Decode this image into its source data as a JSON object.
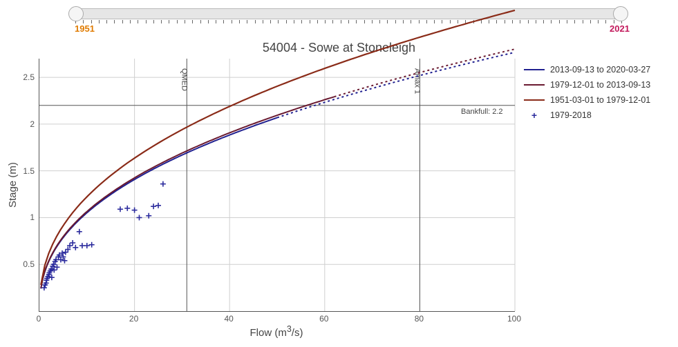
{
  "slider": {
    "min_label": "1951",
    "max_label": "2021",
    "min_color": "#e07b00",
    "max_color": "#c2185b",
    "tick_count": 71
  },
  "chart": {
    "title": "54004 - Sowe at Stoneleigh",
    "xlabel_prefix": "Flow (m",
    "xlabel_sup": "3",
    "xlabel_suffix": "/s)",
    "ylabel": "Stage (m)",
    "xlim": [
      0,
      100
    ],
    "ylim": [
      0,
      2.7
    ],
    "xticks": [
      0,
      20,
      40,
      60,
      80,
      100
    ],
    "yticks": [
      0.5,
      1,
      1.5,
      2,
      2.5
    ],
    "background_color": "#ffffff",
    "grid_color": "#cfcfcf",
    "curves": [
      {
        "name": "2013-09-13 to 2020-03-27",
        "color": "#202090",
        "width": 2,
        "k": 0.4,
        "p": 0.42,
        "solid_to": 50,
        "dash_to": 100
      },
      {
        "name": "1979-12-01 to 2013-09-13",
        "color": "#6a1a30",
        "width": 2,
        "k": 0.405,
        "p": 0.42,
        "solid_to": 62,
        "dash_to": 100
      },
      {
        "name": "1951-03-01 to 1979-12-01",
        "color": "#8a2b18",
        "width": 2.2,
        "k": 0.465,
        "p": 0.42,
        "solid_to": 100,
        "dash_to": 100
      }
    ],
    "points": {
      "name": "1979-2018",
      "color": "#2b2b9d",
      "data": [
        [
          1.0,
          0.25
        ],
        [
          1.2,
          0.28
        ],
        [
          1.4,
          0.3
        ],
        [
          1.5,
          0.33
        ],
        [
          1.6,
          0.35
        ],
        [
          1.8,
          0.37
        ],
        [
          2.0,
          0.39
        ],
        [
          2.1,
          0.41
        ],
        [
          2.3,
          0.43
        ],
        [
          2.5,
          0.45
        ],
        [
          2.6,
          0.36
        ],
        [
          2.8,
          0.48
        ],
        [
          3.0,
          0.5
        ],
        [
          3.1,
          0.44
        ],
        [
          3.3,
          0.53
        ],
        [
          3.5,
          0.55
        ],
        [
          3.7,
          0.47
        ],
        [
          4.0,
          0.58
        ],
        [
          4.2,
          0.6
        ],
        [
          4.5,
          0.55
        ],
        [
          4.8,
          0.62
        ],
        [
          5.0,
          0.58
        ],
        [
          5.3,
          0.54
        ],
        [
          5.5,
          0.63
        ],
        [
          6.0,
          0.66
        ],
        [
          6.4,
          0.7
        ],
        [
          7.0,
          0.73
        ],
        [
          7.6,
          0.68
        ],
        [
          8.4,
          0.85
        ],
        [
          9.0,
          0.7
        ],
        [
          10.0,
          0.7
        ],
        [
          11.0,
          0.71
        ],
        [
          17.0,
          1.09
        ],
        [
          18.5,
          1.1
        ],
        [
          20.0,
          1.08
        ],
        [
          21.0,
          1.0
        ],
        [
          23.0,
          1.02
        ],
        [
          24.0,
          1.12
        ],
        [
          25.0,
          1.13
        ],
        [
          26.0,
          1.36
        ]
      ]
    },
    "reference_lines": {
      "qmed": {
        "label": "QMED",
        "x": 31
      },
      "amax": {
        "label": "Amax 1",
        "x": 80
      },
      "bankfull": {
        "label": "Bankfull: 2.2",
        "y": 2.2
      }
    }
  },
  "legend": {
    "items": [
      {
        "label": "2013-09-13 to 2020-03-27",
        "color": "#202090",
        "type": "line"
      },
      {
        "label": "1979-12-01 to 2013-09-13",
        "color": "#6a1a30",
        "type": "line"
      },
      {
        "label": "1951-03-01 to 1979-12-01",
        "color": "#8a2b18",
        "type": "line"
      },
      {
        "label": "1979-2018",
        "color": "#2b2b9d",
        "type": "plus"
      }
    ]
  }
}
